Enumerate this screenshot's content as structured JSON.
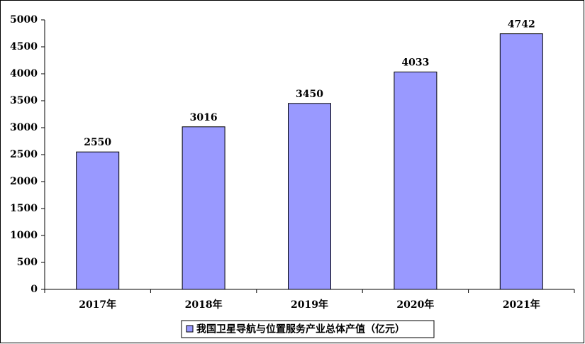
{
  "chart_data": {
    "type": "bar",
    "categories": [
      "2017年",
      "2018年",
      "2019年",
      "2020年",
      "2021年"
    ],
    "series": [
      {
        "name": "我国卫星导航与位置服务产业总体产值（亿元）",
        "color": "#9999ff",
        "values": [
          2550,
          3016,
          3450,
          4033,
          4742
        ]
      }
    ],
    "ylim": [
      0,
      5000
    ],
    "yticks": [
      0,
      500,
      1000,
      1500,
      2000,
      2500,
      3000,
      3500,
      4000,
      4500,
      5000
    ],
    "legend": "bottom"
  }
}
